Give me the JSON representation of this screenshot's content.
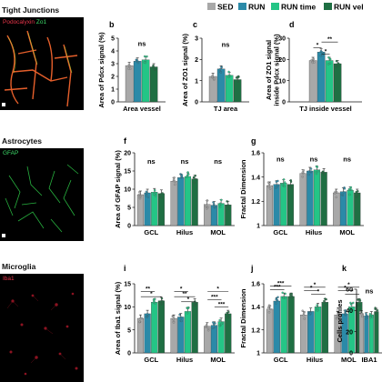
{
  "legend": {
    "items": [
      {
        "label": "SED",
        "color": "#a8a8a8"
      },
      {
        "label": "RUN",
        "color": "#2b8aa8"
      },
      {
        "label": "RUN time",
        "color": "#24c586"
      },
      {
        "label": "RUN vel",
        "color": "#1f6f43"
      }
    ]
  },
  "micrographs": [
    {
      "heading": "Tight Junctions",
      "stain_parts": [
        {
          "text": "Podocalyxin",
          "color": "#e8354a"
        },
        {
          "text": " Zo1",
          "color": "#3ddc6a"
        }
      ],
      "bg": "#050201"
    },
    {
      "heading": "Astrocytes",
      "stain_parts": [
        {
          "text": "GFAP",
          "color": "#3ddc6a"
        }
      ],
      "bg": "#010401"
    },
    {
      "heading": "Microglia",
      "stain_parts": [
        {
          "text": "Iba1",
          "color": "#e8354a"
        }
      ],
      "bg": "#070000"
    }
  ],
  "chart_data": [
    {
      "type": "bar",
      "panel": "b",
      "ylabel": "Area of Pdcx signal (%)",
      "categories": [
        "Area vessel"
      ],
      "ylim": [
        0,
        5
      ],
      "yticks": [
        0,
        1,
        2,
        3,
        4,
        5
      ],
      "series": [
        {
          "values": [
            2.85
          ]
        },
        {
          "values": [
            3.2
          ]
        },
        {
          "values": [
            3.3
          ]
        },
        {
          "values": [
            2.75
          ]
        }
      ],
      "annotations": [
        "ns"
      ]
    },
    {
      "type": "bar",
      "panel": "c",
      "ylabel": "Area of ZO1 signal (%)",
      "categories": [
        "TJ area"
      ],
      "ylim": [
        0,
        3
      ],
      "yticks": [
        0,
        1,
        2,
        3
      ],
      "series": [
        {
          "values": [
            1.2
          ]
        },
        {
          "values": [
            1.55
          ]
        },
        {
          "values": [
            1.25
          ]
        },
        {
          "values": [
            1.05
          ]
        }
      ],
      "annotations": [
        "ns"
      ]
    },
    {
      "type": "bar",
      "panel": "d",
      "ylabel": "Area of ZO1 signal inside Pdcx signal (%)",
      "categories": [
        "TJ inside vessel"
      ],
      "ylim": [
        0,
        30
      ],
      "yticks": [
        0,
        10,
        20,
        30
      ],
      "series": [
        {
          "values": [
            19.5
          ]
        },
        {
          "values": [
            23.5
          ]
        },
        {
          "values": [
            19.5
          ]
        },
        {
          "values": [
            18.0
          ]
        }
      ],
      "annotations": [
        "*",
        "*",
        "**"
      ]
    },
    {
      "type": "bar",
      "panel": "f",
      "ylabel": "Area of GFAP signal (%)",
      "categories": [
        "GCL",
        "Hilus",
        "MOL"
      ],
      "ylim": [
        0,
        20
      ],
      "yticks": [
        0,
        5,
        10,
        15,
        20
      ],
      "series": [
        {
          "values": [
            8.5,
            12.2,
            5.8
          ]
        },
        {
          "values": [
            9.0,
            13.2,
            5.6
          ]
        },
        {
          "values": [
            9.2,
            13.5,
            6.1
          ]
        },
        {
          "values": [
            8.8,
            12.8,
            5.7
          ]
        }
      ],
      "annotations": [
        "ns",
        "ns",
        "ns"
      ]
    },
    {
      "type": "bar",
      "panel": "g",
      "ylabel": "Fractal Dimension",
      "categories": [
        "GCL",
        "Hilus",
        "MOL"
      ],
      "ylim": [
        1.0,
        1.6
      ],
      "yticks": [
        1.0,
        1.2,
        1.4,
        1.6
      ],
      "series": [
        {
          "values": [
            1.33,
            1.43,
            1.27
          ]
        },
        {
          "values": [
            1.34,
            1.45,
            1.28
          ]
        },
        {
          "values": [
            1.35,
            1.46,
            1.29
          ]
        },
        {
          "values": [
            1.34,
            1.44,
            1.27
          ]
        }
      ],
      "annotations": [
        "ns",
        "ns",
        "ns"
      ]
    },
    {
      "type": "bar",
      "panel": "i",
      "ylabel": "Area of Iba1 signal (%)",
      "categories": [
        "GCL",
        "Hilus",
        "MOL"
      ],
      "ylim": [
        0,
        15
      ],
      "yticks": [
        0,
        5,
        10,
        15
      ],
      "series": [
        {
          "values": [
            7.5,
            7.5,
            5.8
          ]
        },
        {
          "values": [
            8.5,
            7.8,
            6.0
          ]
        },
        {
          "values": [
            11.0,
            9.0,
            6.8
          ]
        },
        {
          "values": [
            11.3,
            11.0,
            8.5
          ]
        }
      ],
      "annotations": [
        "**",
        "*",
        "*",
        "**",
        "*",
        "*",
        "***",
        "***"
      ]
    },
    {
      "type": "bar",
      "panel": "j",
      "ylabel": "Fractal Dimension",
      "categories": [
        "GCL",
        "Hilus",
        "MOL"
      ],
      "ylim": [
        1.0,
        1.6
      ],
      "yticks": [
        1.0,
        1.2,
        1.4,
        1.6
      ],
      "series": [
        {
          "values": [
            1.38,
            1.33,
            1.33
          ]
        },
        {
          "values": [
            1.45,
            1.36,
            1.34
          ]
        },
        {
          "values": [
            1.49,
            1.4,
            1.4
          ]
        },
        {
          "values": [
            1.49,
            1.44,
            1.44
          ]
        }
      ],
      "annotations": [
        "***",
        "***",
        "*",
        "*",
        "*",
        "*",
        "*",
        "*"
      ]
    },
    {
      "type": "bar",
      "panel": "k",
      "ylabel": "Cells profiles",
      "categories": [
        "IBA1"
      ],
      "ylim": [
        0,
        60
      ],
      "yticks": [
        0,
        20,
        40,
        60
      ],
      "series": [
        {
          "values": [
            37
          ]
        },
        {
          "values": [
            35
          ]
        },
        {
          "values": [
            36
          ]
        },
        {
          "values": [
            39
          ]
        }
      ],
      "annotations": [
        "ns"
      ]
    }
  ]
}
